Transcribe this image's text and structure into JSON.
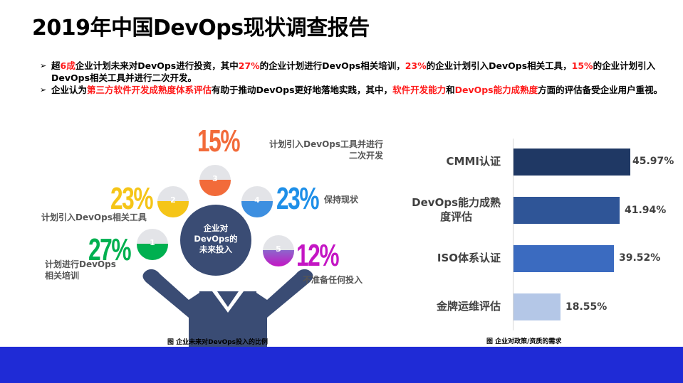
{
  "title": "2019年中国DevOps现状调查报告",
  "bullets": [
    {
      "segments": [
        {
          "text": "超",
          "red": false
        },
        {
          "text": "6成",
          "red": true
        },
        {
          "text": "企业计划未来对DevOps进行投资，其中",
          "red": false
        },
        {
          "text": "27%",
          "red": true
        },
        {
          "text": "的企业计划进行DevOps相关培训，",
          "red": false
        },
        {
          "text": "23%",
          "red": true
        },
        {
          "text": "的企业计划引入DevOps相关工具，",
          "red": false
        },
        {
          "text": "15%",
          "red": true
        },
        {
          "text": "的企业计划引入DevOps相关工具并进行二次开发。",
          "red": false
        }
      ]
    },
    {
      "segments": [
        {
          "text": "企业认为",
          "red": false
        },
        {
          "text": "第三方软件开发成熟度体系评估",
          "red": true
        },
        {
          "text": "有助于推动DevOps更好地落地实践，其中，",
          "red": false
        },
        {
          "text": "软件开发能力",
          "red": true
        },
        {
          "text": "和",
          "red": false
        },
        {
          "text": "DevOps能力成熟度",
          "red": true
        },
        {
          "text": "方面的评估备受企业用户重视。",
          "red": false
        }
      ]
    }
  ],
  "infographic": {
    "center_label": [
      "企业对",
      "DevOps的",
      "未来投入"
    ],
    "caption": "图 企业未来对DevOps投入的比例",
    "items": [
      {
        "num": "1",
        "pct": "27%",
        "label": "计划进行DevOps相关培训",
        "label_lines": [
          "计划进行DevOps",
          "相关培训"
        ],
        "color": "#00b050"
      },
      {
        "num": "2",
        "pct": "23%",
        "label": "计划引入DevOps相关工具",
        "label_lines": [
          "计划引入DevOps相关工具"
        ],
        "color": "#f5c518"
      },
      {
        "num": "3",
        "pct": "15%",
        "label": "计划引入DevOps工具并进行二次开发",
        "label_lines": [
          "计划引入DevOps工具并进行",
          "二次开发"
        ],
        "color": "#f26b3a"
      },
      {
        "num": "4",
        "pct": "23%",
        "label": "保持现状",
        "label_lines": [
          "保持现状"
        ],
        "color": "#1e8fe8"
      },
      {
        "num": "5",
        "pct": "12%",
        "label": "不准备任何投入",
        "label_lines": [
          "不准备任何投入"
        ],
        "color": "#c416c4"
      }
    ]
  },
  "chart_data": {
    "type": "bar",
    "orientation": "horizontal",
    "title": "图 企业对政策/资质的需求",
    "categories": [
      "CMMI认证",
      "DevOps能力成熟度评估",
      "ISO体系认证",
      "金牌运维评估"
    ],
    "values": [
      45.97,
      41.94,
      39.52,
      18.55
    ],
    "value_labels": [
      "45.97%",
      "41.94%",
      "39.52%",
      "18.55%"
    ],
    "colors": [
      "#1f3864",
      "#2f5597",
      "#3b6bc0",
      "#b4c7e7"
    ],
    "xlabel": "",
    "ylabel": "",
    "grid": false,
    "legend": "none",
    "category_lines": [
      [
        "CMMI认证"
      ],
      [
        "DevOps能力成熟",
        "度评估"
      ],
      [
        "ISO体系认证"
      ],
      [
        "金牌运维评估"
      ]
    ]
  },
  "footer": {
    "color": "#1f2bd6"
  }
}
